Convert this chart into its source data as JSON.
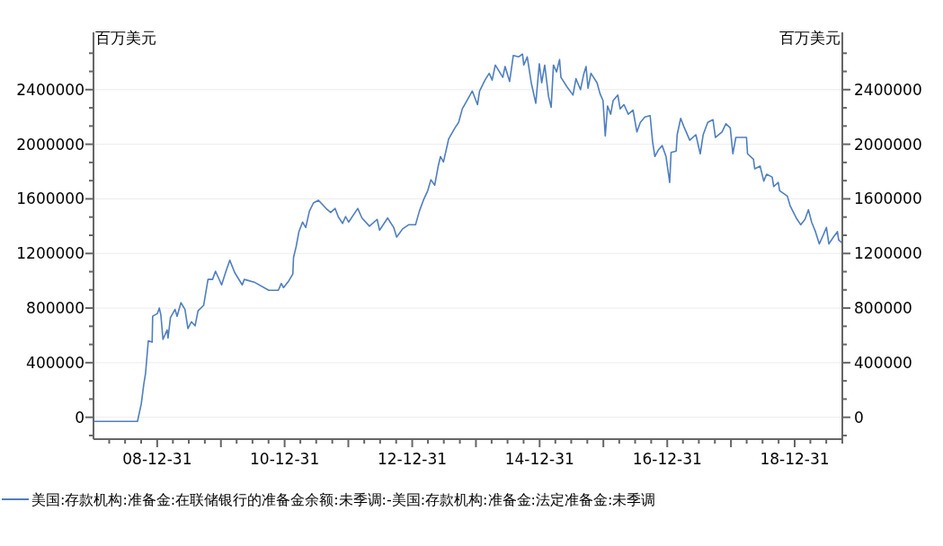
{
  "chart_data": {
    "type": "line",
    "ylabel": "百万美元",
    "y2label": "百万美元",
    "legend": "bottom",
    "grid": "y",
    "xlim": [
      "2008-01-01",
      "2019-09-30"
    ],
    "xticks": [
      {
        "value": "2008-03-31",
        "label": null
      },
      {
        "value": "2008-06-30",
        "label": null
      },
      {
        "value": "2008-09-30",
        "label": null
      },
      {
        "value": "2008-12-31",
        "label": "08-12-31"
      },
      {
        "value": "2009-03-31",
        "label": null
      },
      {
        "value": "2009-06-30",
        "label": null
      },
      {
        "value": "2009-09-30",
        "label": null
      },
      {
        "value": "2009-12-31",
        "label": null
      },
      {
        "value": "2010-03-31",
        "label": null
      },
      {
        "value": "2010-06-30",
        "label": null
      },
      {
        "value": "2010-09-30",
        "label": null
      },
      {
        "value": "2010-12-31",
        "label": "10-12-31"
      },
      {
        "value": "2011-03-31",
        "label": null
      },
      {
        "value": "2011-06-30",
        "label": null
      },
      {
        "value": "2011-09-30",
        "label": null
      },
      {
        "value": "2011-12-31",
        "label": null
      },
      {
        "value": "2012-03-31",
        "label": null
      },
      {
        "value": "2012-06-30",
        "label": null
      },
      {
        "value": "2012-09-30",
        "label": null
      },
      {
        "value": "2012-12-31",
        "label": "12-12-31"
      },
      {
        "value": "2013-03-31",
        "label": null
      },
      {
        "value": "2013-06-30",
        "label": null
      },
      {
        "value": "2013-09-30",
        "label": null
      },
      {
        "value": "2013-12-31",
        "label": null
      },
      {
        "value": "2014-03-31",
        "label": null
      },
      {
        "value": "2014-06-30",
        "label": null
      },
      {
        "value": "2014-09-30",
        "label": null
      },
      {
        "value": "2014-12-31",
        "label": "14-12-31"
      },
      {
        "value": "2015-03-31",
        "label": null
      },
      {
        "value": "2015-06-30",
        "label": null
      },
      {
        "value": "2015-09-30",
        "label": null
      },
      {
        "value": "2015-12-31",
        "label": null
      },
      {
        "value": "2016-03-31",
        "label": null
      },
      {
        "value": "2016-06-30",
        "label": null
      },
      {
        "value": "2016-09-30",
        "label": null
      },
      {
        "value": "2016-12-31",
        "label": "16-12-31"
      },
      {
        "value": "2017-03-31",
        "label": null
      },
      {
        "value": "2017-06-30",
        "label": null
      },
      {
        "value": "2017-09-30",
        "label": null
      },
      {
        "value": "2017-12-31",
        "label": null
      },
      {
        "value": "2018-03-31",
        "label": null
      },
      {
        "value": "2018-06-30",
        "label": null
      },
      {
        "value": "2018-09-30",
        "label": null
      },
      {
        "value": "2018-12-31",
        "label": "18-12-31"
      },
      {
        "value": "2019-03-31",
        "label": null
      },
      {
        "value": "2019-06-30",
        "label": null
      },
      {
        "value": "2019-09-30",
        "label": null
      }
    ],
    "ylim": [
      -160000,
      2800000
    ],
    "yticks": [
      {
        "value": -133333,
        "label": null
      },
      0,
      {
        "value": 133333,
        "label": null
      },
      {
        "value": 266667,
        "label": null
      },
      400000,
      {
        "value": 533333,
        "label": null
      },
      {
        "value": 666667,
        "label": null
      },
      800000,
      {
        "value": 933333,
        "label": null
      },
      {
        "value": 1066667,
        "label": null
      },
      1200000,
      {
        "value": 1333333,
        "label": null
      },
      {
        "value": 1466667,
        "label": null
      },
      1600000,
      {
        "value": 1733333,
        "label": null
      },
      {
        "value": 1866667,
        "label": null
      },
      2000000,
      {
        "value": 2133333,
        "label": null
      },
      {
        "value": 2266667,
        "label": null
      },
      2400000,
      {
        "value": 2533333,
        "label": null
      },
      {
        "value": 2666667,
        "label": null
      }
    ],
    "y2lim": [
      -160000,
      2800000
    ],
    "y2ticks": [
      {
        "value": -133333,
        "label": null
      },
      0,
      {
        "value": 133333,
        "label": null
      },
      {
        "value": 266667,
        "label": null
      },
      400000,
      {
        "value": 533333,
        "label": null
      },
      {
        "value": 666667,
        "label": null
      },
      800000,
      {
        "value": 933333,
        "label": null
      },
      {
        "value": 1066667,
        "label": null
      },
      1200000,
      {
        "value": 1333333,
        "label": null
      },
      {
        "value": 1466667,
        "label": null
      },
      1600000,
      {
        "value": 1733333,
        "label": null
      },
      {
        "value": 1866667,
        "label": null
      },
      2000000,
      {
        "value": 2133333,
        "label": null
      },
      {
        "value": 2266667,
        "label": null
      },
      2400000,
      {
        "value": 2533333,
        "label": null
      },
      {
        "value": 2666667,
        "label": null
      }
    ],
    "series": [
      {
        "name": "美国:存款机构:准备金:在联储银行的准备金余额:未季调:-美国:存款机构:准备金:法定准备金:未季调",
        "color": "#4f7fbf",
        "line_style": "solid",
        "marker": "none",
        "x": [
          "2008-01-01",
          "2008-09-09",
          "2008-10-01",
          "2008-10-15",
          "2008-10-25",
          "2008-11-10",
          "2008-12-02",
          "2008-12-05",
          "2009-01-01",
          "2009-01-12",
          "2009-01-21",
          "2009-02-02",
          "2009-02-26",
          "2009-03-03",
          "2009-03-17",
          "2009-04-12",
          "2009-04-24",
          "2009-05-16",
          "2009-06-08",
          "2009-06-25",
          "2009-07-15",
          "2009-08-05",
          "2009-08-22",
          "2009-09-23",
          "2009-10-18",
          "2009-11-13",
          "2009-11-30",
          "2010-01-04",
          "2010-01-29",
          "2010-02-20",
          "2010-03-20",
          "2010-05-02",
          "2010-05-14",
          "2010-07-10",
          "2010-10-01",
          "2010-11-25",
          "2010-12-12",
          "2010-12-25",
          "2011-01-24",
          "2011-02-16",
          "2011-02-20",
          "2011-03-07",
          "2011-03-23",
          "2011-04-13",
          "2011-05-01",
          "2011-05-22",
          "2011-06-14",
          "2011-07-13",
          "2011-08-25",
          "2011-09-21",
          "2011-10-16",
          "2011-11-03",
          "2011-11-28",
          "2011-12-15",
          "2012-01-02",
          "2012-02-23",
          "2012-03-18",
          "2012-04-30",
          "2012-06-13",
          "2012-06-27",
          "2012-08-12",
          "2012-09-16",
          "2012-10-03",
          "2012-11-06",
          "2012-12-10",
          "2013-01-19",
          "2013-02-10",
          "2013-03-05",
          "2013-03-30",
          "2013-04-17",
          "2013-05-09",
          "2013-05-29",
          "2013-06-11",
          "2013-06-28",
          "2013-07-28",
          "2013-09-02",
          "2013-09-23",
          "2013-10-14",
          "2013-11-10",
          "2013-12-10",
          "2014-01-09",
          "2014-01-21",
          "2014-02-21",
          "2014-03-17",
          "2014-04-03",
          "2014-04-21",
          "2014-06-03",
          "2014-06-16",
          "2014-07-12",
          "2014-08-02",
          "2014-09-01",
          "2014-09-24",
          "2014-10-01",
          "2014-10-21",
          "2014-11-13",
          "2014-12-09",
          "2014-12-29",
          "2015-01-12",
          "2015-01-29",
          "2015-02-20",
          "2015-03-07",
          "2015-03-20",
          "2015-04-07",
          "2015-04-24",
          "2015-05-02",
          "2015-06-06",
          "2015-07-10",
          "2015-07-27",
          "2015-08-22",
          "2015-09-09",
          "2015-09-23",
          "2015-10-04",
          "2015-10-21",
          "2015-11-25",
          "2015-12-12",
          "2015-12-29",
          "2016-01-11",
          "2016-01-24",
          "2016-02-11",
          "2016-02-25",
          "2016-03-23",
          "2016-04-05",
          "2016-04-27",
          "2016-05-22",
          "2016-06-18",
          "2016-07-10",
          "2016-07-30",
          "2016-08-25",
          "2016-09-24",
          "2016-10-08",
          "2016-10-21",
          "2016-11-11",
          "2016-12-02",
          "2016-12-24",
          "2017-01-14",
          "2017-01-22",
          "2017-02-20",
          "2017-02-26",
          "2017-03-18",
          "2017-04-05",
          "2017-05-09",
          "2017-06-13",
          "2017-07-08",
          "2017-07-25",
          "2017-08-20",
          "2017-09-19",
          "2017-10-03",
          "2017-11-10",
          "2017-12-02",
          "2017-12-27",
          "2018-01-11",
          "2018-01-28",
          "2018-03-01",
          "2018-03-30",
          "2018-04-05",
          "2018-05-09",
          "2018-05-16",
          "2018-06-16",
          "2018-07-07",
          "2018-07-23",
          "2018-08-24",
          "2018-09-02",
          "2018-09-28",
          "2018-10-06",
          "2018-11-19",
          "2018-12-05",
          "2019-01-09",
          "2019-02-04",
          "2019-02-28",
          "2019-03-20",
          "2019-04-07",
          "2019-04-29",
          "2019-05-21",
          "2019-06-11",
          "2019-07-01",
          "2019-07-15",
          "2019-08-10",
          "2019-09-02",
          "2019-09-09",
          "2019-09-26"
        ],
        "values": [
          -30000,
          -30000,
          100000,
          240000,
          320000,
          560000,
          550000,
          740000,
          760000,
          800000,
          750000,
          570000,
          640000,
          580000,
          730000,
          790000,
          740000,
          840000,
          790000,
          650000,
          700000,
          670000,
          780000,
          820000,
          1010000,
          1010000,
          1070000,
          970000,
          1070000,
          1150000,
          1060000,
          970000,
          1010000,
          990000,
          930000,
          930000,
          980000,
          950000,
          1000000,
          1050000,
          1170000,
          1250000,
          1360000,
          1430000,
          1390000,
          1510000,
          1570000,
          1590000,
          1530000,
          1500000,
          1530000,
          1470000,
          1420000,
          1470000,
          1430000,
          1530000,
          1460000,
          1400000,
          1450000,
          1370000,
          1460000,
          1390000,
          1320000,
          1380000,
          1410000,
          1410000,
          1510000,
          1590000,
          1660000,
          1740000,
          1700000,
          1840000,
          1910000,
          1870000,
          2040000,
          2120000,
          2160000,
          2260000,
          2320000,
          2390000,
          2290000,
          2390000,
          2470000,
          2520000,
          2470000,
          2580000,
          2490000,
          2570000,
          2460000,
          2650000,
          2640000,
          2660000,
          2580000,
          2640000,
          2450000,
          2300000,
          2590000,
          2450000,
          2580000,
          2350000,
          2270000,
          2580000,
          2530000,
          2620000,
          2490000,
          2420000,
          2360000,
          2480000,
          2400000,
          2510000,
          2570000,
          2410000,
          2520000,
          2450000,
          2370000,
          2320000,
          2060000,
          2280000,
          2220000,
          2320000,
          2360000,
          2260000,
          2290000,
          2220000,
          2250000,
          2090000,
          2160000,
          2200000,
          2210000,
          2020000,
          1910000,
          1960000,
          1990000,
          1910000,
          1720000,
          1940000,
          1950000,
          2070000,
          2190000,
          2130000,
          2030000,
          2070000,
          1930000,
          2070000,
          2160000,
          2180000,
          2050000,
          2090000,
          2150000,
          2120000,
          1930000,
          2050000,
          2050000,
          2050000,
          1930000,
          1890000,
          1820000,
          1840000,
          1730000,
          1780000,
          1760000,
          1690000,
          1720000,
          1660000,
          1620000,
          1550000,
          1460000,
          1410000,
          1450000,
          1520000,
          1430000,
          1360000,
          1270000,
          1330000,
          1390000,
          1270000,
          1320000,
          1360000,
          1300000,
          1280000
        ]
      }
    ]
  }
}
